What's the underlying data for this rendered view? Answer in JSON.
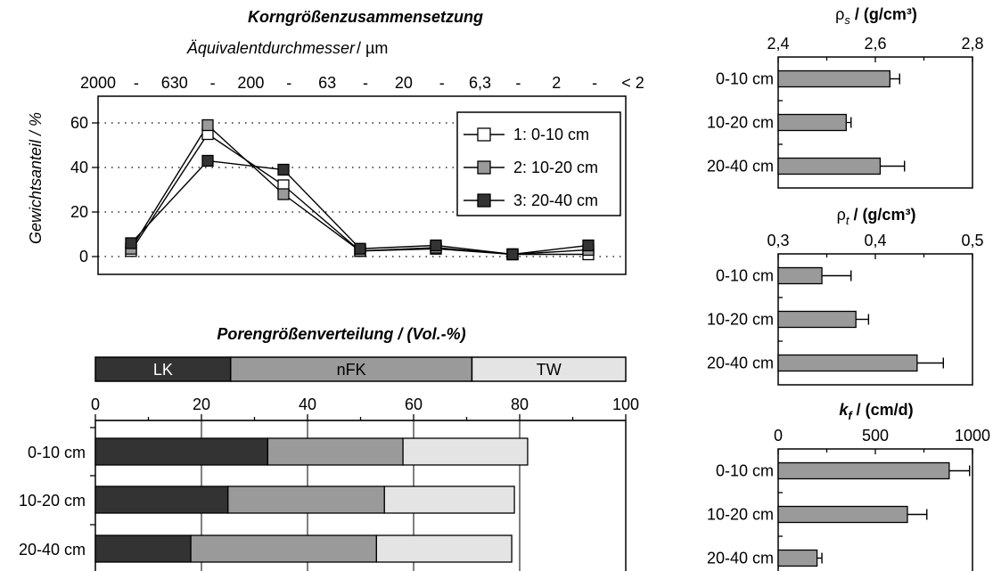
{
  "colors": {
    "white_series": "#ffffff",
    "light_gray": "#e4e4e4",
    "mid_gray": "#9a9a9a",
    "dark": "#333333",
    "black": "#000000"
  },
  "chart_data": [
    {
      "type": "line",
      "title": "Korngrößenzusammensetzung",
      "xlabel_main": "Äquivalentdurchmesser",
      "xlabel_unit": "/ µm",
      "ylabel": "Gewichtsanteil / %",
      "categories": [
        "2000 - 630",
        "630 - 200",
        "200 - 63",
        "63 - 20",
        "20 - 6,3",
        "6,3 - 2",
        "< 2"
      ],
      "top_tick_labels": [
        "2000",
        "-",
        "630",
        "-",
        "200",
        "-",
        "63",
        "-",
        "20",
        "-",
        "6,3",
        "-",
        "2",
        "-",
        "< 2"
      ],
      "y_ticks": [
        "0",
        "20",
        "40",
        "60"
      ],
      "ylim": [
        0,
        70
      ],
      "grid": "dotted horizontal at 0, 20, 40, 60",
      "legend_position": "top-right",
      "series": [
        {
          "name": "1: 0-10 cm",
          "values": [
            2.5,
            55,
            32,
            2.5,
            3.5,
            1,
            1
          ]
        },
        {
          "name": "2: 10-20 cm",
          "values": [
            3.5,
            59,
            28,
            2.5,
            4,
            1,
            3
          ]
        },
        {
          "name": "3: 20-40 cm",
          "values": [
            6,
            43,
            39,
            3.5,
            5,
            1,
            5
          ]
        }
      ]
    },
    {
      "type": "bar",
      "title": "Porengrößenverteilung / (Vol.-%)",
      "legend": [
        "LK",
        "nFK",
        "TW"
      ],
      "x_ticks": [
        "0",
        "20",
        "40",
        "60",
        "80",
        "100"
      ],
      "xlim": [
        0,
        100
      ],
      "categories": [
        "0-10 cm",
        "10-20 cm",
        "20-40 cm"
      ],
      "series": [
        {
          "name": "LK",
          "values": [
            32.5,
            25,
            18
          ]
        },
        {
          "name": "nFK",
          "values": [
            25.5,
            29.5,
            35
          ]
        },
        {
          "name": "TW",
          "values": [
            23.5,
            24.5,
            25.5
          ]
        }
      ],
      "legend_bar_fractions": [
        25.5,
        45.5,
        29
      ]
    },
    {
      "type": "bar",
      "title_symbol": "ρ",
      "title_subscript": "s",
      "title_unit": " / (g/cm³)",
      "x_ticks": [
        "2,4",
        "2,6",
        "2,8"
      ],
      "xlim": [
        2.4,
        2.8
      ],
      "categories": [
        "0-10 cm",
        "10-20 cm",
        "20-40 cm"
      ],
      "values": [
        2.63,
        2.54,
        2.61
      ],
      "errors": [
        0.02,
        0.01,
        0.05
      ]
    },
    {
      "type": "bar",
      "title_symbol": "ρ",
      "title_subscript": "t",
      "title_unit": " / (g/cm³)",
      "x_ticks": [
        "0,3",
        "0,4",
        "0,5"
      ],
      "xlim": [
        0.3,
        0.5
      ],
      "categories": [
        "0-10 cm",
        "10-20 cm",
        "20-40 cm"
      ],
      "values": [
        0.345,
        0.38,
        0.443
      ],
      "errors": [
        0.03,
        0.013,
        0.027
      ]
    },
    {
      "type": "bar",
      "title_symbol": "k",
      "title_subscript": "f",
      "title_unit": " / (cm/d)",
      "x_ticks": [
        "0",
        "500",
        "1000"
      ],
      "xlim": [
        0,
        1000
      ],
      "categories": [
        "0-10 cm",
        "10-20 cm",
        "20-40 cm"
      ],
      "values": [
        880,
        665,
        200
      ],
      "errors": [
        105,
        100,
        25
      ]
    }
  ]
}
